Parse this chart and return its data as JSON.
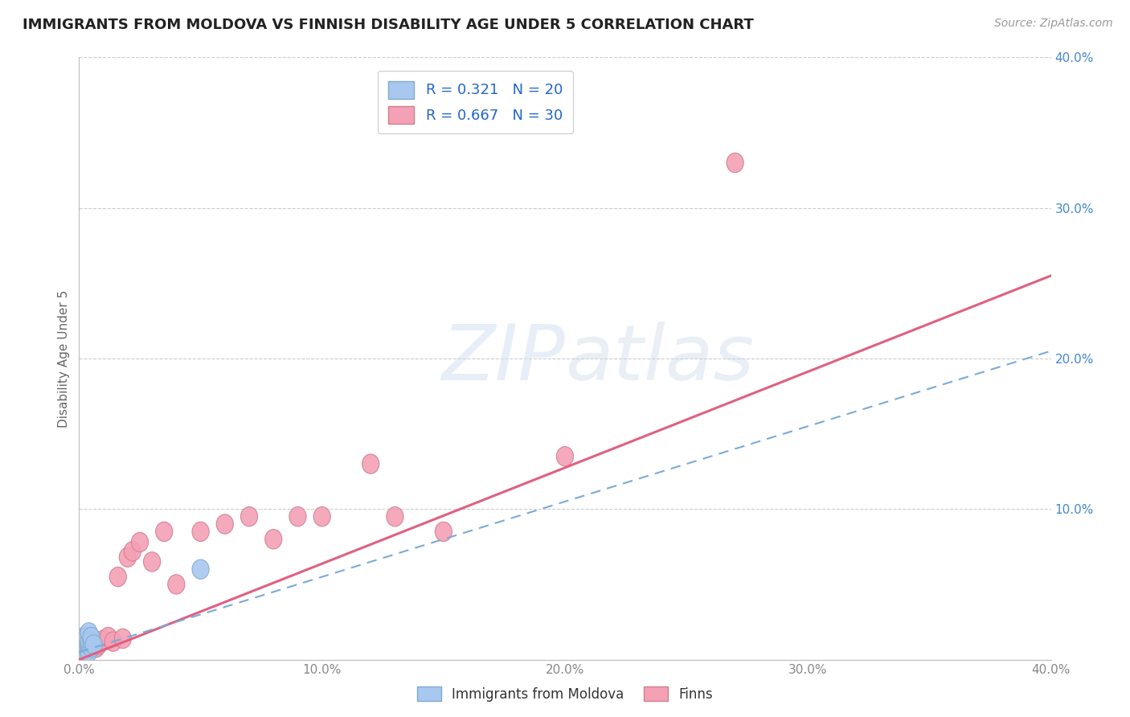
{
  "title": "IMMIGRANTS FROM MOLDOVA VS FINNISH DISABILITY AGE UNDER 5 CORRELATION CHART",
  "source": "Source: ZipAtlas.com",
  "ylabel": "Disability Age Under 5",
  "xlim": [
    0.0,
    0.4
  ],
  "ylim": [
    0.0,
    0.4
  ],
  "legend_label1": "Immigrants from Moldova",
  "legend_label2": "Finns",
  "r1": 0.321,
  "n1": 20,
  "r2": 0.667,
  "n2": 30,
  "color_moldova": "#a8c8f0",
  "color_finns": "#f4a0b5",
  "color_line_moldova": "#7aaad8",
  "color_line_finns": "#e06080",
  "background_color": "#ffffff",
  "moldova_x": [
    0.001,
    0.001,
    0.002,
    0.002,
    0.002,
    0.002,
    0.003,
    0.003,
    0.003,
    0.003,
    0.003,
    0.004,
    0.004,
    0.004,
    0.004,
    0.005,
    0.005,
    0.005,
    0.006,
    0.05
  ],
  "moldova_y": [
    0.005,
    0.008,
    0.005,
    0.01,
    0.012,
    0.015,
    0.005,
    0.008,
    0.01,
    0.012,
    0.015,
    0.005,
    0.01,
    0.012,
    0.018,
    0.008,
    0.012,
    0.015,
    0.01,
    0.06
  ],
  "finns_x": [
    0.001,
    0.002,
    0.003,
    0.004,
    0.005,
    0.006,
    0.007,
    0.008,
    0.01,
    0.012,
    0.014,
    0.016,
    0.018,
    0.02,
    0.022,
    0.025,
    0.03,
    0.035,
    0.04,
    0.05,
    0.06,
    0.07,
    0.08,
    0.09,
    0.1,
    0.12,
    0.13,
    0.15,
    0.2,
    0.27
  ],
  "finns_y": [
    0.003,
    0.005,
    0.007,
    0.008,
    0.01,
    0.012,
    0.008,
    0.01,
    0.013,
    0.015,
    0.012,
    0.055,
    0.014,
    0.068,
    0.072,
    0.078,
    0.065,
    0.085,
    0.05,
    0.085,
    0.09,
    0.095,
    0.08,
    0.095,
    0.095,
    0.13,
    0.095,
    0.085,
    0.135,
    0.33
  ],
  "line_finns_x0": 0.0,
  "line_finns_y0": 0.0,
  "line_finns_x1": 0.4,
  "line_finns_y1": 0.255,
  "line_moldova_x0": 0.0,
  "line_moldova_y0": 0.005,
  "line_moldova_x1": 0.4,
  "line_moldova_y1": 0.205
}
